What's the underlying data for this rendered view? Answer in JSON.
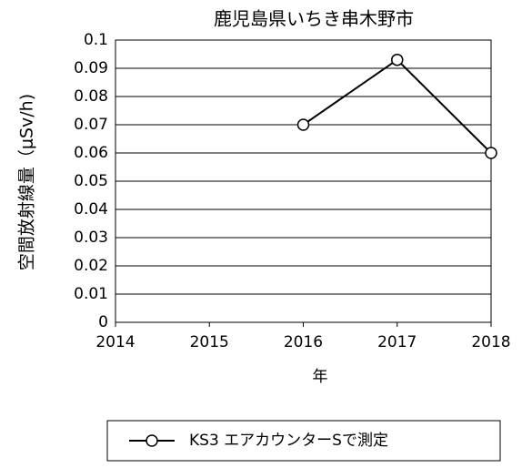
{
  "chart_data": {
    "type": "line",
    "title": "鹿児島県いちき串木野市",
    "xlabel": "年",
    "ylabel": "空間放射線量（μSv/h)",
    "x": [
      2016,
      2017,
      2018
    ],
    "series": [
      {
        "name": "KS3 エアカウンターSで測定",
        "color": "#000000",
        "values": [
          0.07,
          0.093,
          0.06
        ]
      }
    ],
    "xlim": [
      2014,
      2018
    ],
    "xticks": [
      2014,
      2015,
      2016,
      2017,
      2018
    ],
    "ylim": [
      0,
      0.1
    ],
    "yticks": [
      0,
      0.01,
      0.02,
      0.03,
      0.04,
      0.05,
      0.06,
      0.07,
      0.08,
      0.09,
      0.1
    ],
    "grid": true,
    "legend": "bottom"
  }
}
